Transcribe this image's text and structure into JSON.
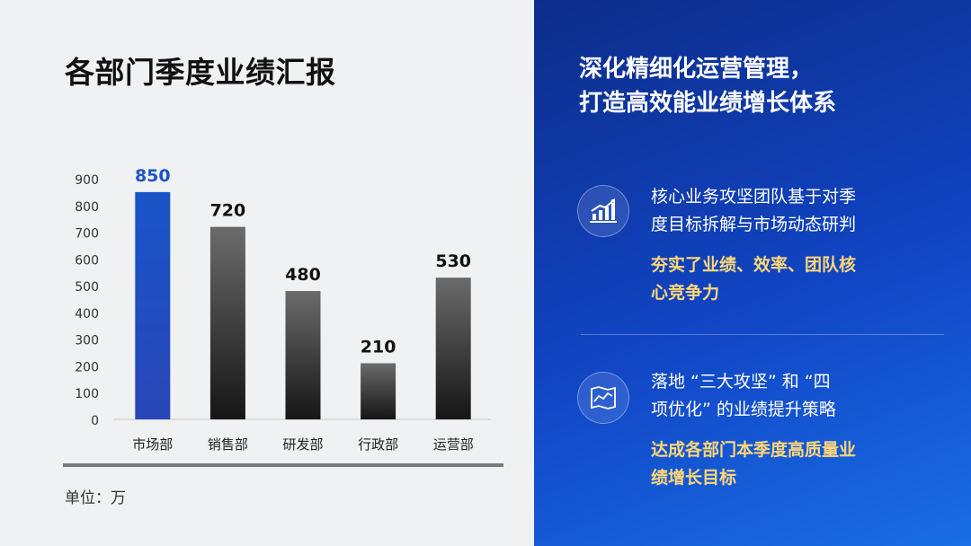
{
  "left": {
    "title": "各部门季度业绩汇报",
    "unit_note": "单位：万"
  },
  "chart_data": {
    "type": "bar",
    "title": "",
    "xlabel": "",
    "ylabel": "",
    "categories": [
      "市场部",
      "销售部",
      "研发部",
      "行政部",
      "运营部"
    ],
    "values": [
      850,
      720,
      480,
      210,
      530
    ],
    "ylim": [
      0,
      900
    ],
    "yticks": [
      0,
      100,
      200,
      300,
      400,
      500,
      600,
      700,
      800,
      900
    ],
    "highlight_index": 0,
    "highlight_color": "#1a55c8",
    "bar_color_top": "#6b6b6b",
    "bar_color_bottom": "#151515",
    "grid": false
  },
  "right": {
    "headline_line1": "深化精细化运营管理，",
    "headline_line2": "打造高效能业绩增长体系",
    "block1": {
      "icon": "growth-chart-icon",
      "desc_line1": "核心业务攻坚团队基于对季",
      "desc_line2": "度目标拆解与市场动态研判",
      "emph_line1": "夯实了业绩、效率、团队核",
      "emph_line2": "心竞争力"
    },
    "block2": {
      "icon": "map-icon",
      "desc_line1": "落地 “三大攻坚” 和 “四",
      "desc_line2": "项优化” 的业绩提升策略",
      "emph_line1": "达成各部门本季度高质量业",
      "emph_line2": "绩增长目标"
    },
    "accent_color": "#ffd778"
  }
}
